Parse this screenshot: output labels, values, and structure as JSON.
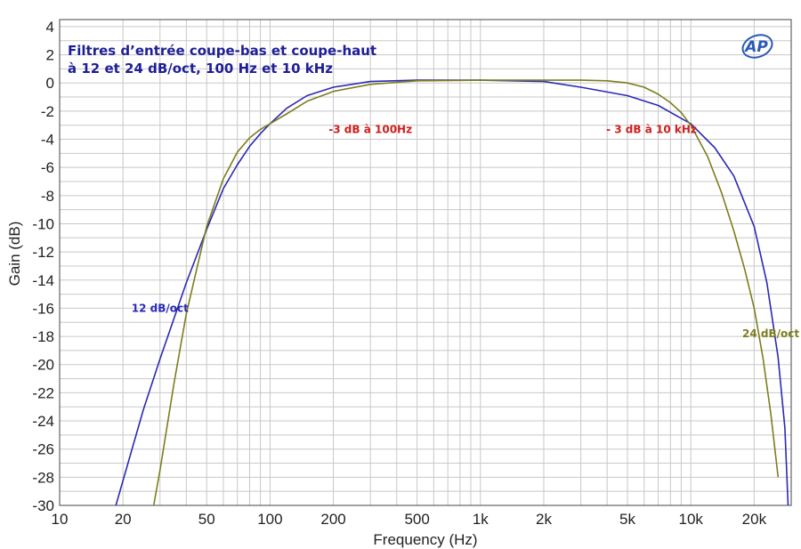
{
  "chart_data": {
    "type": "line",
    "title_lines": [
      "Filtres d’entrée coupe-bas et coupe-haut",
      "à 12 et 24 dB/oct, 100 Hz et 10 kHz"
    ],
    "xlabel": "Frequency (Hz)",
    "ylabel": "Gain (dB)",
    "x_scale": "log",
    "xlim": [
      10,
      30000
    ],
    "ylim": [
      -30,
      4.5
    ],
    "grid": true,
    "x_ticks": [
      {
        "value": 10,
        "label": "10"
      },
      {
        "value": 20,
        "label": "20"
      },
      {
        "value": 50,
        "label": "50"
      },
      {
        "value": 100,
        "label": "100"
      },
      {
        "value": 200,
        "label": "200"
      },
      {
        "value": 500,
        "label": "500"
      },
      {
        "value": 1000,
        "label": "1k"
      },
      {
        "value": 2000,
        "label": "2k"
      },
      {
        "value": 5000,
        "label": "5k"
      },
      {
        "value": 10000,
        "label": "10k"
      },
      {
        "value": 20000,
        "label": "20k"
      }
    ],
    "y_ticks": [
      4,
      2,
      0,
      -2,
      -4,
      -6,
      -8,
      -10,
      -12,
      -14,
      -16,
      -18,
      -20,
      -22,
      -24,
      -26,
      -28,
      -30
    ],
    "series": [
      {
        "name": "12 dB/oct",
        "color": "#2a2ab4",
        "x": [
          18.5,
          25,
          30,
          40,
          50,
          60,
          70,
          80,
          90,
          100,
          120,
          150,
          200,
          300,
          500,
          1000,
          2000,
          3000,
          5000,
          7000,
          10000,
          13000,
          16000,
          20000,
          23000,
          26000,
          28000,
          29000
        ],
        "y": [
          -30,
          -23.2,
          -19.6,
          -14.2,
          -10.4,
          -7.5,
          -5.8,
          -4.5,
          -3.6,
          -2.9,
          -1.8,
          -0.9,
          -0.3,
          0.1,
          0.2,
          0.2,
          0.1,
          -0.3,
          -0.9,
          -1.6,
          -2.9,
          -4.6,
          -6.6,
          -10.2,
          -14.2,
          -19.5,
          -24.5,
          -30
        ]
      },
      {
        "name": "24 dB/oct",
        "color": "#7d7d1e",
        "x": [
          28,
          30,
          35,
          40,
          50,
          60,
          70,
          80,
          90,
          100,
          120,
          150,
          200,
          300,
          500,
          1000,
          2000,
          3000,
          4000,
          5000,
          6000,
          7000,
          8000,
          9000,
          10000,
          12000,
          14000,
          16000,
          18000,
          20000,
          22000,
          24000,
          26000
        ],
        "y": [
          -30,
          -27.5,
          -21.3,
          -16.4,
          -10.2,
          -6.8,
          -4.9,
          -3.9,
          -3.3,
          -2.9,
          -2.2,
          -1.3,
          -0.6,
          -0.1,
          0.15,
          0.2,
          0.2,
          0.2,
          0.15,
          0.0,
          -0.3,
          -0.8,
          -1.4,
          -2.1,
          -3.0,
          -5.2,
          -7.8,
          -10.5,
          -13.2,
          -16.0,
          -19.5,
          -23.5,
          -28.0
        ]
      }
    ],
    "annotations": [
      {
        "text": "-3 dB à 100Hz",
        "x": 300,
        "y": -3.3,
        "color": "#cc2020"
      },
      {
        "text": "- 3 dB à 10 kHz",
        "x": 6500,
        "y": -3.3,
        "color": "#cc2020"
      },
      {
        "text": "12 dB/oct",
        "x": 30,
        "y": -16,
        "color": "#2a2ab4"
      },
      {
        "text": "24 dB/oct",
        "x": 24000,
        "y": -17.8,
        "color": "#7d7d1e"
      }
    ],
    "title_color": "#1e1e96",
    "grid_color": "#c8c8c8",
    "logo_text": "AP",
    "logo_color": "#2a5ab8"
  }
}
